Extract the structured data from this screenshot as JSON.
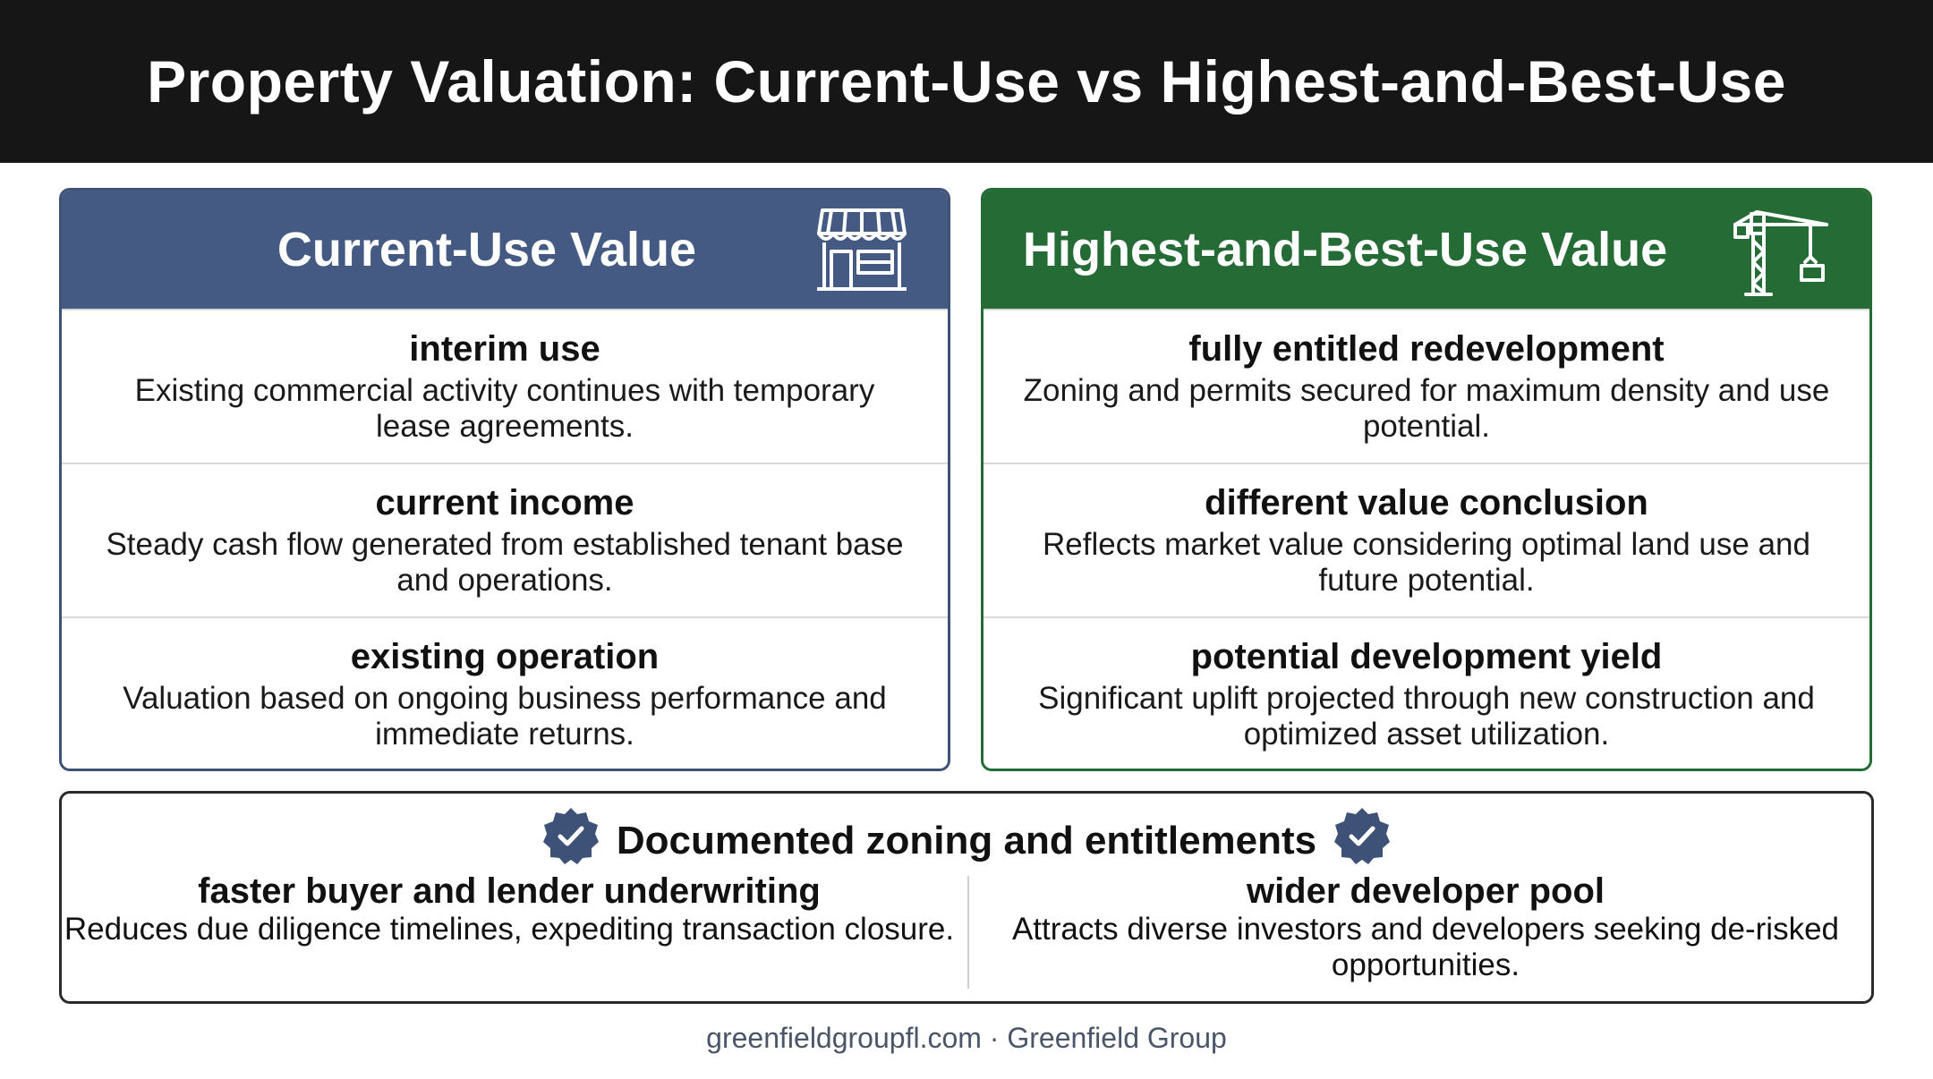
{
  "title": "Property Valuation: Current-Use vs Highest-and-Best-Use",
  "colors": {
    "header_bg": "#161616",
    "left_accent": "#445a82",
    "right_accent": "#256b35",
    "badge": "#3e5277"
  },
  "left": {
    "heading": "Current-Use Value",
    "icon": "storefront-icon",
    "items": [
      {
        "title": "interim use",
        "desc": "Existing commercial activity continues with temporary lease agreements."
      },
      {
        "title": "current income",
        "desc": "Steady cash flow generated from established tenant base and operations."
      },
      {
        "title": "existing operation",
        "desc": "Valuation based on ongoing business performance and immediate returns."
      }
    ]
  },
  "right": {
    "heading": "Highest-and-Best-Use Value",
    "icon": "construction-crane-icon",
    "items": [
      {
        "title": "fully entitled redevelopment",
        "desc": "Zoning and permits secured for maximum density and use potential."
      },
      {
        "title": "different value conclusion",
        "desc": "Reflects market value considering optimal land use and future potential."
      },
      {
        "title": "potential development yield",
        "desc": "Significant uplift projected through new construction and optimized asset utilization."
      }
    ]
  },
  "bottom": {
    "heading": "Documented zoning and entitlements",
    "icon": "check-badge-icon",
    "left": {
      "title": "faster buyer and lender underwriting",
      "desc": "Reduces due diligence timelines, expediting transaction closure."
    },
    "right": {
      "title": "wider developer pool",
      "desc": "Attracts diverse investors and developers seeking de-risked opportunities."
    }
  },
  "footer": "greenfieldgroupfl.com · Greenfield Group"
}
